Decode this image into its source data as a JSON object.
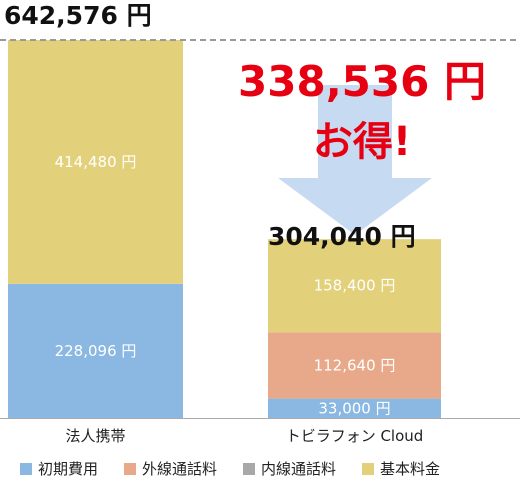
{
  "chart_data": {
    "type": "bar",
    "stacked": true,
    "categories": [
      "法人携帯",
      "トビラフォン Cloud"
    ],
    "series": [
      {
        "name": "初期費用",
        "color": "#8ab8e2",
        "values": [
          228096,
          33000
        ]
      },
      {
        "name": "外線通話料",
        "color": "#e8a98a",
        "values": [
          0,
          112640
        ]
      },
      {
        "name": "内線通話料",
        "color": "#a8a8a8",
        "values": [
          0,
          0
        ]
      },
      {
        "name": "基本料金",
        "color": "#e3d07a",
        "values": [
          414480,
          158400
        ]
      }
    ],
    "segment_labels": [
      [
        "228,096 円",
        "",
        "",
        "414,480 円"
      ],
      [
        "33,000 円",
        "112,640 円",
        "",
        "158,400 円"
      ]
    ],
    "totals": [
      642576,
      304040
    ],
    "total_labels": [
      "642,576 円",
      "304,040 円"
    ],
    "savings": {
      "amount": "338,536 円",
      "text": "お得!",
      "color": "#e60012"
    },
    "ylim": [
      0,
      642576
    ]
  }
}
